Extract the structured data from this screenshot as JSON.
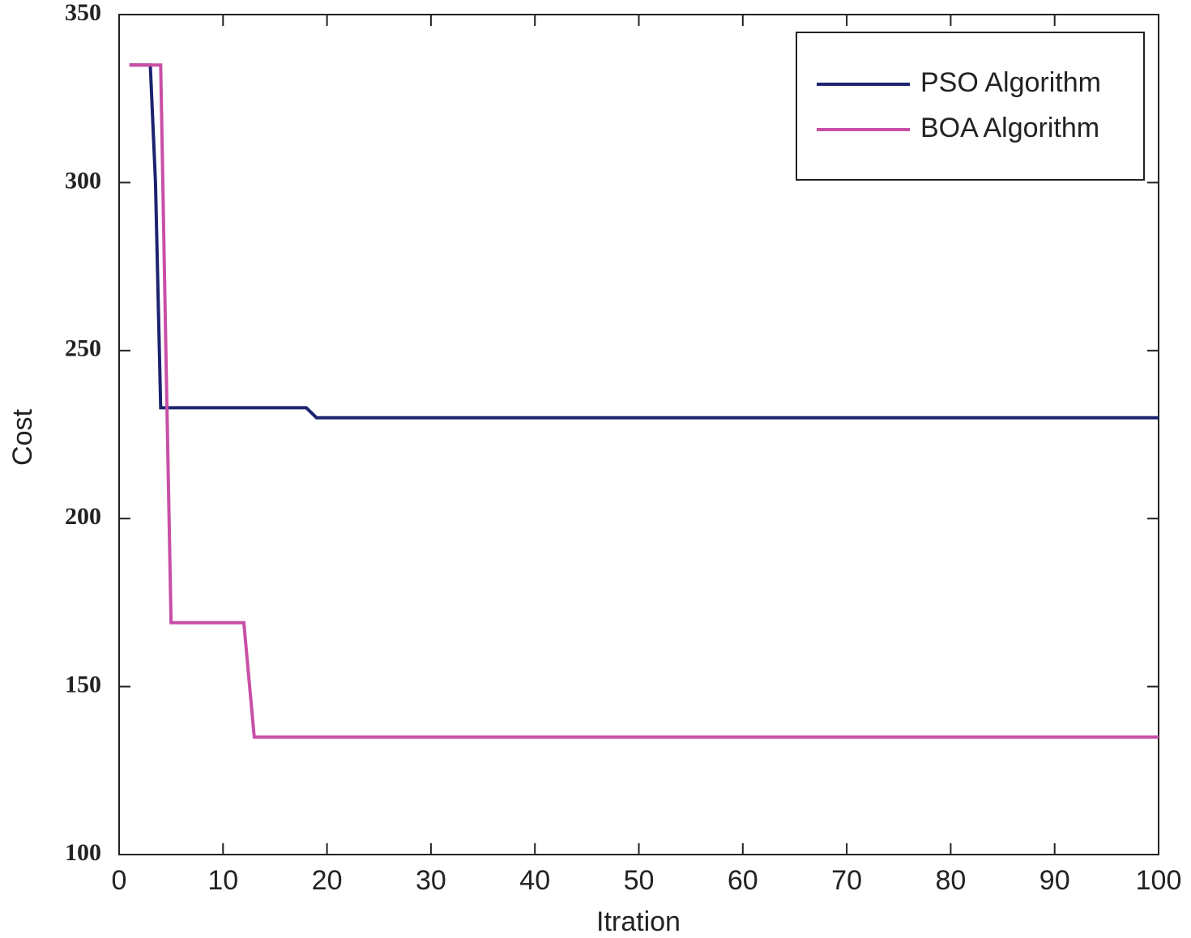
{
  "chart_data": {
    "type": "line",
    "xlabel": "Itration",
    "ylabel": "Cost",
    "xlim": [
      0,
      100
    ],
    "xticks": [
      0,
      10,
      20,
      30,
      40,
      50,
      60,
      70,
      80,
      90,
      100
    ],
    "ylim": [
      100,
      350
    ],
    "yticks": [
      100,
      150,
      200,
      250,
      300,
      350
    ],
    "legend": "upper-right",
    "series": [
      {
        "name": "PSO Algorithm",
        "color": "#1c2370",
        "x": [
          1,
          3,
          3.5,
          4,
          18,
          19,
          100
        ],
        "values": [
          335,
          335,
          300,
          233,
          233,
          230,
          230
        ]
      },
      {
        "name": "BOA Algorithm",
        "color": "#c94fa6",
        "x": [
          1,
          4,
          4.5,
          5,
          12,
          13,
          100
        ],
        "values": [
          335,
          335,
          250,
          169,
          169,
          135,
          135
        ]
      }
    ]
  }
}
